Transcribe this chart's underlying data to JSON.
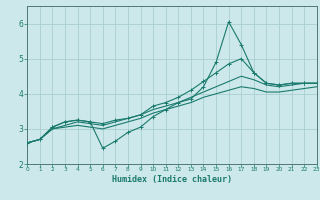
{
  "xlabel": "Humidex (Indice chaleur)",
  "xlim": [
    0,
    23
  ],
  "ylim": [
    2,
    6.5
  ],
  "bg_color": "#cce8ea",
  "grid_color": "#aacfd2",
  "line_color": "#1a7a6e",
  "xticks": [
    0,
    1,
    2,
    3,
    4,
    5,
    6,
    7,
    8,
    9,
    10,
    11,
    12,
    13,
    14,
    15,
    16,
    17,
    18,
    19,
    20,
    21,
    22,
    23
  ],
  "yticks": [
    2,
    3,
    4,
    5,
    6
  ],
  "curve1_x": [
    0,
    1,
    2,
    3,
    4,
    5,
    6,
    7,
    8,
    9,
    10,
    11,
    12,
    13,
    14,
    15,
    16,
    17,
    18,
    19,
    20,
    21,
    22,
    23
  ],
  "curve1_y": [
    2.6,
    2.7,
    3.05,
    3.2,
    3.25,
    3.2,
    3.15,
    3.25,
    3.3,
    3.4,
    3.65,
    3.75,
    3.9,
    4.1,
    4.35,
    4.6,
    4.85,
    5.0,
    4.6,
    4.3,
    4.25,
    4.3,
    4.3,
    4.3
  ],
  "curve2_x": [
    0,
    1,
    2,
    3,
    4,
    5,
    6,
    7,
    8,
    9,
    10,
    11,
    12,
    13,
    14,
    15,
    16,
    17,
    18,
    19,
    20,
    21,
    22,
    23
  ],
  "curve2_y": [
    2.6,
    2.7,
    3.05,
    3.2,
    3.25,
    3.2,
    2.45,
    2.65,
    2.9,
    3.05,
    3.35,
    3.55,
    3.75,
    3.85,
    4.2,
    4.9,
    6.05,
    5.4,
    4.6,
    4.3,
    4.25,
    4.3,
    4.3,
    4.3
  ],
  "curve3_x": [
    0,
    1,
    2,
    3,
    4,
    5,
    6,
    7,
    8,
    9,
    10,
    11,
    12,
    13,
    14,
    15,
    16,
    17,
    18,
    19,
    20,
    21,
    22,
    23
  ],
  "curve3_y": [
    2.6,
    2.7,
    3.0,
    3.1,
    3.2,
    3.15,
    3.1,
    3.2,
    3.3,
    3.4,
    3.55,
    3.65,
    3.75,
    3.9,
    4.05,
    4.2,
    4.35,
    4.5,
    4.4,
    4.25,
    4.2,
    4.25,
    4.3,
    4.3
  ],
  "curve4_x": [
    0,
    1,
    2,
    3,
    4,
    5,
    6,
    7,
    8,
    9,
    10,
    11,
    12,
    13,
    14,
    15,
    16,
    17,
    18,
    19,
    20,
    21,
    22,
    23
  ],
  "curve4_y": [
    2.6,
    2.7,
    3.0,
    3.05,
    3.1,
    3.05,
    3.0,
    3.1,
    3.2,
    3.3,
    3.45,
    3.55,
    3.65,
    3.75,
    3.9,
    4.0,
    4.1,
    4.2,
    4.15,
    4.05,
    4.05,
    4.1,
    4.15,
    4.2
  ]
}
